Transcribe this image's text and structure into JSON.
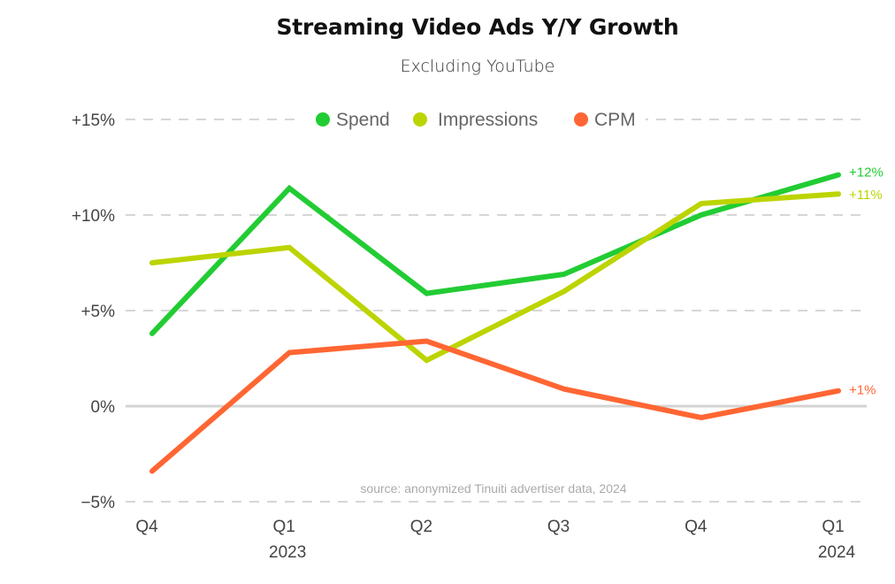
{
  "chart_data": {
    "type": "line",
    "title": "Streaming Video Ads Y/Y Growth",
    "subtitle": "Excluding YouTube",
    "source": "source: anonymized Tinuiti advertiser data, 2024",
    "xlabel": "",
    "ylabel": "",
    "ylim": [
      -5,
      15
    ],
    "yticks": [
      15,
      10,
      5,
      0,
      -5
    ],
    "ytick_labels": [
      "+15%",
      "+10%",
      "+5%",
      "0%",
      "−5%"
    ],
    "grid": true,
    "legend_position": "top-center",
    "categories": [
      "Q4",
      "Q1",
      "Q2",
      "Q3",
      "Q4",
      "Q1"
    ],
    "category_sublabels": [
      "",
      "2023",
      "",
      "",
      "",
      "2024"
    ],
    "series": [
      {
        "name": "Spend",
        "color": "#22cc33",
        "values": [
          3.8,
          11.4,
          5.9,
          6.9,
          10.0,
          12.1
        ],
        "end_label": "+12%"
      },
      {
        "name": "Impressions",
        "color": "#bcd400",
        "values": [
          7.5,
          8.3,
          2.4,
          6.0,
          10.6,
          11.1
        ],
        "end_label": "+11%"
      },
      {
        "name": "CPM",
        "color": "#ff6633",
        "values": [
          -3.4,
          2.8,
          3.4,
          0.9,
          -0.6,
          0.8
        ],
        "end_label": "+1%"
      }
    ]
  }
}
